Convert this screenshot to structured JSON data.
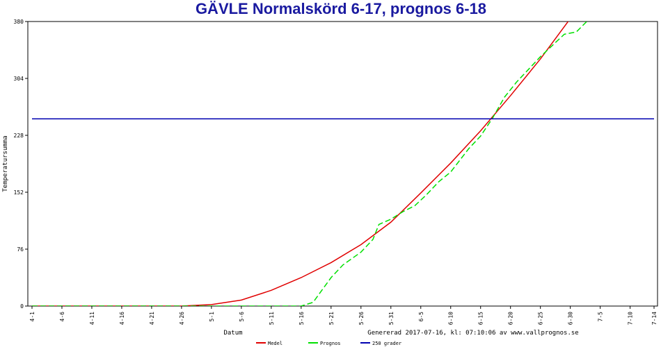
{
  "chart_data": {
    "type": "line",
    "title": "GÄVLE Normalskörd 6-17, prognos 6-18",
    "x_label": "Datum",
    "y_label": "Temperatursumma",
    "footer": "Genererad 2017-07-16, kl: 07:10:06 av www.vallprognos.se",
    "xlim": [
      0,
      104
    ],
    "ylim": [
      0,
      380
    ],
    "yticks": [
      0,
      76,
      152,
      228,
      304,
      380
    ],
    "xticks": [
      {
        "value": 0,
        "label": "4-1"
      },
      {
        "value": 5,
        "label": "4-6"
      },
      {
        "value": 10,
        "label": "4-11"
      },
      {
        "value": 15,
        "label": "4-16"
      },
      {
        "value": 20,
        "label": "4-21"
      },
      {
        "value": 25,
        "label": "4-26"
      },
      {
        "value": 30,
        "label": "5-1"
      },
      {
        "value": 35,
        "label": "5-6"
      },
      {
        "value": 40,
        "label": "5-11"
      },
      {
        "value": 45,
        "label": "5-16"
      },
      {
        "value": 50,
        "label": "5-21"
      },
      {
        "value": 55,
        "label": "5-26"
      },
      {
        "value": 60,
        "label": "5-31"
      },
      {
        "value": 65,
        "label": "6-5"
      },
      {
        "value": 70,
        "label": "6-10"
      },
      {
        "value": 75,
        "label": "6-15"
      },
      {
        "value": 80,
        "label": "6-20"
      },
      {
        "value": 85,
        "label": "6-25"
      },
      {
        "value": 90,
        "label": "6-30"
      },
      {
        "value": 95,
        "label": "7-5"
      },
      {
        "value": 100,
        "label": "7-10"
      },
      {
        "value": 104,
        "label": "7-14"
      }
    ],
    "series": [
      {
        "name": "Medel",
        "color": "#e00000",
        "dashed": false,
        "x": [
          0,
          25,
          30,
          35,
          40,
          45,
          50,
          55,
          60,
          65,
          70,
          75,
          80,
          85,
          90
        ],
        "values": [
          0,
          0,
          2,
          8,
          21,
          38,
          58,
          82,
          112,
          151,
          191,
          234,
          281,
          330,
          384
        ]
      },
      {
        "name": "Prognos",
        "color": "#00e000",
        "dashed": true,
        "x": [
          0,
          45,
          47,
          50,
          52,
          55,
          57,
          58,
          60,
          62,
          64,
          66,
          68,
          70,
          73,
          75,
          77,
          79,
          81,
          83,
          85,
          87,
          89,
          91,
          93
        ],
        "values": [
          0,
          0,
          5,
          38,
          55,
          72,
          89,
          109,
          116,
          126,
          134,
          149,
          166,
          179,
          210,
          227,
          251,
          279,
          299,
          316,
          333,
          348,
          363,
          366,
          382
        ]
      },
      {
        "name": "250 grader",
        "color": "#0000b0",
        "dashed": false,
        "x": [
          0,
          104
        ],
        "values": [
          250,
          250
        ]
      }
    ]
  }
}
